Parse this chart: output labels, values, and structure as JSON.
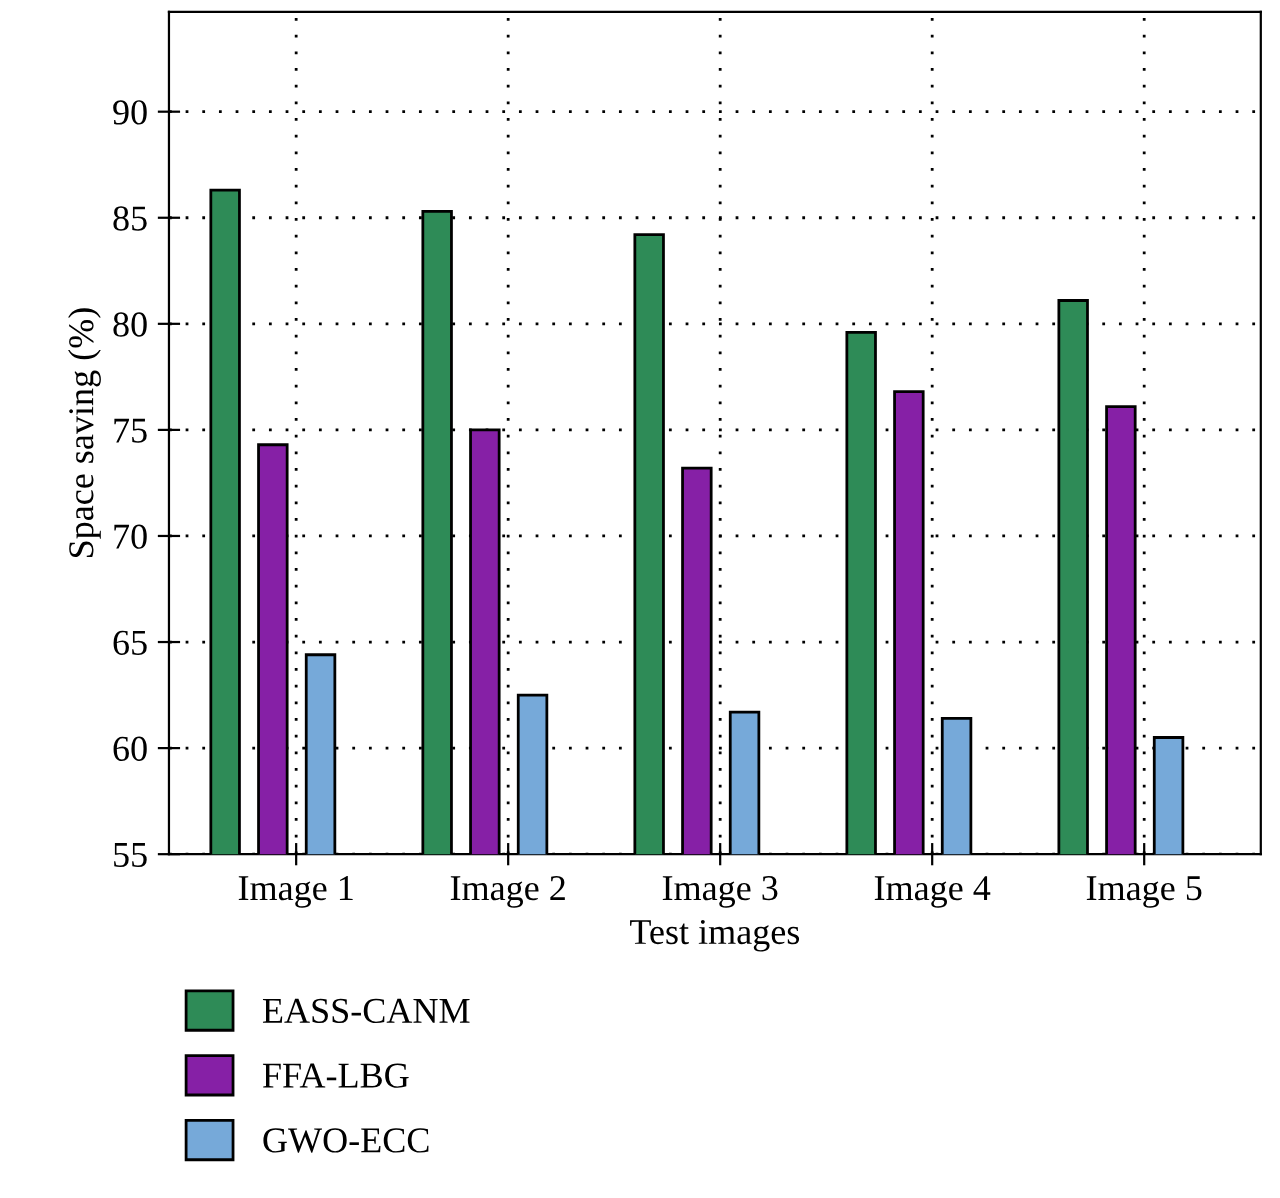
{
  "chart_data": {
    "type": "bar",
    "xlabel": "Test images",
    "ylabel": "Space saving (%)",
    "categories": [
      "Image 1",
      "Image 2",
      "Image 3",
      "Image 4",
      "Image 5"
    ],
    "series": [
      {
        "name": "EASS-CANM",
        "color": "#2e8b57",
        "values": [
          86.3,
          85.3,
          84.2,
          79.6,
          81.1
        ]
      },
      {
        "name": "FFA-LBG",
        "color": "#8620a6",
        "values": [
          74.3,
          75.0,
          73.2,
          76.8,
          76.1
        ]
      },
      {
        "name": "GWO-ECC",
        "color": "#76a9d9",
        "values": [
          64.4,
          62.5,
          61.7,
          61.4,
          60.5
        ]
      }
    ],
    "ylim": [
      55,
      94.7
    ],
    "yticks": [
      55,
      60,
      65,
      70,
      75,
      80,
      85,
      90
    ],
    "grid": true,
    "legend": "bottom"
  }
}
